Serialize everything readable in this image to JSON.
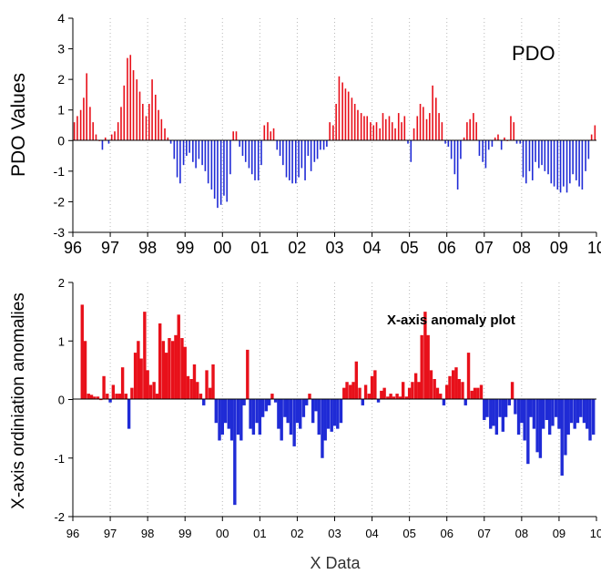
{
  "chart_data": [
    {
      "type": "bar",
      "title": "PDO",
      "xlabel": "",
      "ylabel": "PDO Values",
      "xlim": [
        1996,
        2010
      ],
      "ylim": [
        -3,
        4
      ],
      "yticks": [
        -3,
        -2,
        -1,
        0,
        1,
        2,
        3,
        4
      ],
      "xtick_labels": [
        "96",
        "97",
        "98",
        "99",
        "00",
        "01",
        "02",
        "03",
        "04",
        "05",
        "06",
        "07",
        "08",
        "09",
        "10"
      ],
      "grid": "vertical dotted",
      "colors": {
        "positive": "#e8101a",
        "negative": "#1f2bd6"
      },
      "series": [
        {
          "x": [
            1996.04,
            1996.12,
            1996.21,
            1996.29,
            1996.37,
            1996.46,
            1996.54,
            1996.62,
            1996.71,
            1996.79,
            1996.87,
            1996.96,
            1997.04,
            1997.12,
            1997.21,
            1997.29,
            1997.37,
            1997.46,
            1997.54,
            1997.62,
            1997.71,
            1997.79,
            1997.87,
            1997.96,
            1998.04,
            1998.12,
            1998.21,
            1998.29,
            1998.37,
            1998.46,
            1998.54,
            1998.62,
            1998.71,
            1998.79,
            1998.87,
            1998.96,
            1999.04,
            1999.12,
            1999.21,
            1999.29,
            1999.37,
            1999.46,
            1999.54,
            1999.62,
            1999.71,
            1999.79,
            1999.87,
            1999.96,
            2000.04,
            2000.12,
            2000.21,
            2000.29,
            2000.37,
            2000.46,
            2000.54,
            2000.62,
            2000.71,
            2000.79,
            2000.87,
            2000.96,
            2001.04,
            2001.12,
            2001.21,
            2001.29,
            2001.37,
            2001.46,
            2001.54,
            2001.62,
            2001.71,
            2001.79,
            2001.87,
            2001.96,
            2002.04,
            2002.12,
            2002.21,
            2002.29,
            2002.37,
            2002.46,
            2002.54,
            2002.62,
            2002.71,
            2002.79,
            2002.87,
            2002.96,
            2003.04,
            2003.12,
            2003.21,
            2003.29,
            2003.37,
            2003.46,
            2003.54,
            2003.62,
            2003.71,
            2003.79,
            2003.87,
            2003.96,
            2004.04,
            2004.12,
            2004.21,
            2004.29,
            2004.37,
            2004.46,
            2004.54,
            2004.62,
            2004.71,
            2004.79,
            2004.87,
            2004.96,
            2005.04,
            2005.12,
            2005.21,
            2005.29,
            2005.37,
            2005.46,
            2005.54,
            2005.62,
            2005.71,
            2005.79,
            2005.87,
            2005.96,
            2006.04,
            2006.12,
            2006.21,
            2006.29,
            2006.37,
            2006.46,
            2006.54,
            2006.62,
            2006.71,
            2006.79,
            2006.87,
            2006.96,
            2007.04,
            2007.12,
            2007.21,
            2007.29,
            2007.37,
            2007.46,
            2007.54,
            2007.62,
            2007.71,
            2007.79,
            2007.87,
            2007.96,
            2008.04,
            2008.12,
            2008.21,
            2008.29,
            2008.37,
            2008.46,
            2008.54,
            2008.62,
            2008.71,
            2008.79,
            2008.87,
            2008.96,
            2009.04,
            2009.12,
            2009.21,
            2009.29,
            2009.37,
            2009.46,
            2009.54,
            2009.62,
            2009.71,
            2009.79,
            2009.87,
            2009.96
          ],
          "values": [
            0.6,
            0.8,
            1.0,
            1.4,
            2.2,
            1.1,
            0.6,
            0.2,
            0.0,
            -0.3,
            0.1,
            -0.1,
            0.2,
            0.3,
            0.6,
            1.1,
            1.8,
            2.7,
            2.8,
            2.3,
            2.0,
            1.6,
            1.2,
            0.8,
            1.2,
            2.0,
            1.5,
            1.0,
            0.7,
            0.4,
            0.1,
            -0.1,
            -0.6,
            -1.2,
            -1.4,
            -0.8,
            -0.5,
            -0.4,
            -0.7,
            -0.9,
            -0.6,
            -0.8,
            -1.0,
            -1.4,
            -1.6,
            -1.9,
            -2.2,
            -2.1,
            -1.8,
            -2.0,
            -1.1,
            0.3,
            0.3,
            -0.2,
            -0.5,
            -0.7,
            -0.9,
            -1.1,
            -1.3,
            -1.3,
            -0.8,
            0.5,
            0.6,
            0.3,
            0.4,
            -0.3,
            -0.5,
            -0.8,
            -1.2,
            -1.3,
            -1.4,
            -1.4,
            -1.2,
            -0.9,
            -1.3,
            -0.5,
            -1.0,
            -0.7,
            -0.6,
            -0.3,
            -0.3,
            -0.2,
            0.6,
            0.5,
            1.2,
            2.1,
            1.9,
            1.7,
            1.6,
            1.4,
            1.2,
            1.0,
            0.9,
            0.8,
            0.8,
            0.6,
            0.5,
            0.6,
            0.4,
            0.9,
            0.7,
            0.8,
            0.6,
            0.4,
            0.9,
            0.6,
            0.8,
            -0.1,
            -0.7,
            0.4,
            0.8,
            1.2,
            1.1,
            0.7,
            0.9,
            1.8,
            1.4,
            0.9,
            0.6,
            -0.1,
            -0.2,
            -0.6,
            -1.1,
            -1.6,
            -0.6,
            0.1,
            0.6,
            0.7,
            0.9,
            0.6,
            -0.5,
            -0.7,
            -0.9,
            -0.3,
            -0.2,
            0.1,
            0.2,
            -0.3,
            0.1,
            0.0,
            0.8,
            0.6,
            -0.1,
            -0.1,
            -1.2,
            -1.4,
            -1.0,
            -1.3,
            -0.7,
            -0.9,
            -0.8,
            -1.0,
            -1.1,
            -1.4,
            -1.5,
            -1.6,
            -1.7,
            -1.5,
            -1.7,
            -1.4,
            -1.1,
            -1.3,
            -1.5,
            -1.6,
            -1.0,
            -0.6,
            0.2,
            0.5
          ]
        }
      ]
    },
    {
      "type": "bar",
      "title": "X-axis anomaly plot",
      "xlabel": "X Data",
      "ylabel": "X-axis ordiniation anomalies",
      "xlim": [
        1996,
        2010
      ],
      "ylim": [
        -2,
        2
      ],
      "yticks": [
        -2,
        -1,
        0,
        1,
        2
      ],
      "xtick_labels": [
        "96",
        "97",
        "98",
        "99",
        "00",
        "01",
        "02",
        "03",
        "04",
        "05",
        "06",
        "07",
        "08",
        "09",
        "10"
      ],
      "grid": "vertical dotted",
      "colors": {
        "positive": "#e8101a",
        "negative": "#1f2bd6"
      },
      "series": [
        {
          "x": [
            1996.25,
            1996.33,
            1996.42,
            1996.5,
            1996.58,
            1996.67,
            1996.75,
            1996.83,
            1996.92,
            1997.0,
            1997.08,
            1997.17,
            1997.25,
            1997.33,
            1997.42,
            1997.5,
            1997.58,
            1997.67,
            1997.75,
            1997.83,
            1997.92,
            1998.0,
            1998.08,
            1998.17,
            1998.25,
            1998.33,
            1998.42,
            1998.5,
            1998.58,
            1998.67,
            1998.75,
            1998.83,
            1998.92,
            1999.0,
            1999.08,
            1999.17,
            1999.25,
            1999.33,
            1999.42,
            1999.5,
            1999.58,
            1999.67,
            1999.75,
            1999.83,
            1999.92,
            2000.0,
            2000.08,
            2000.17,
            2000.25,
            2000.33,
            2000.42,
            2000.5,
            2000.58,
            2000.67,
            2000.75,
            2000.83,
            2000.92,
            2001.0,
            2001.08,
            2001.17,
            2001.25,
            2001.33,
            2001.42,
            2001.5,
            2001.58,
            2001.67,
            2001.75,
            2001.83,
            2001.92,
            2002.0,
            2002.08,
            2002.17,
            2002.25,
            2002.33,
            2002.42,
            2002.5,
            2002.58,
            2002.67,
            2002.75,
            2002.83,
            2002.92,
            2003.0,
            2003.08,
            2003.17,
            2003.25,
            2003.33,
            2003.42,
            2003.5,
            2003.58,
            2003.67,
            2003.75,
            2003.83,
            2003.92,
            2004.0,
            2004.08,
            2004.17,
            2004.25,
            2004.33,
            2004.42,
            2004.5,
            2004.58,
            2004.67,
            2004.75,
            2004.83,
            2004.92,
            2005.0,
            2005.08,
            2005.17,
            2005.25,
            2005.33,
            2005.42,
            2005.5,
            2005.58,
            2005.67,
            2005.75,
            2005.83,
            2005.92,
            2006.0,
            2006.08,
            2006.17,
            2006.25,
            2006.33,
            2006.42,
            2006.5,
            2006.58,
            2006.67,
            2006.75,
            2006.83,
            2006.92,
            2007.0,
            2007.08,
            2007.17,
            2007.25,
            2007.33,
            2007.42,
            2007.5,
            2007.58,
            2007.67,
            2007.75,
            2007.83,
            2007.92,
            2008.0,
            2008.08,
            2008.17,
            2008.25,
            2008.33,
            2008.42,
            2008.5,
            2008.58,
            2008.67,
            2008.75,
            2008.83,
            2008.92,
            2009.0,
            2009.08,
            2009.17,
            2009.25,
            2009.33,
            2009.42,
            2009.5,
            2009.58,
            2009.67,
            2009.75,
            2009.83,
            2009.92
          ],
          "values": [
            1.62,
            1.0,
            0.1,
            0.08,
            0.05,
            0.05,
            0.0,
            0.4,
            0.1,
            -0.05,
            0.25,
            0.1,
            0.1,
            0.55,
            0.1,
            -0.5,
            0.2,
            0.8,
            1.0,
            0.7,
            1.5,
            0.5,
            0.25,
            0.3,
            0.1,
            1.3,
            1.0,
            0.8,
            1.05,
            1.0,
            1.1,
            1.45,
            1.05,
            0.9,
            0.4,
            0.35,
            0.6,
            0.3,
            0.1,
            -0.1,
            0.5,
            0.2,
            0.6,
            -0.4,
            -0.7,
            -0.6,
            -0.4,
            -0.5,
            -0.7,
            -1.8,
            -0.6,
            -0.7,
            -0.1,
            0.85,
            -0.5,
            -0.6,
            -0.4,
            -0.6,
            -0.3,
            -0.2,
            -0.1,
            0.1,
            -0.05,
            -0.5,
            -0.7,
            -0.3,
            -0.4,
            -0.6,
            -0.8,
            -0.4,
            -0.5,
            -0.3,
            -0.1,
            0.1,
            -0.4,
            -0.2,
            -0.6,
            -1.0,
            -0.7,
            -0.5,
            -0.55,
            -0.45,
            -0.5,
            -0.4,
            0.2,
            0.3,
            0.25,
            0.3,
            0.65,
            0.2,
            -0.1,
            0.25,
            0.1,
            0.4,
            0.5,
            -0.05,
            0.15,
            0.2,
            0.05,
            0.1,
            0.05,
            0.1,
            0.05,
            0.3,
            0.05,
            0.2,
            0.3,
            0.45,
            0.3,
            1.1,
            1.5,
            1.1,
            0.5,
            0.35,
            0.2,
            0.1,
            -0.1,
            0.25,
            0.4,
            0.5,
            0.55,
            0.35,
            0.3,
            -0.1,
            0.8,
            0.15,
            0.2,
            0.2,
            0.25,
            -0.35,
            -0.3,
            -0.5,
            -0.45,
            -0.6,
            -0.3,
            -0.55,
            -0.3,
            -0.1,
            0.3,
            -0.25,
            -0.6,
            -0.4,
            -0.7,
            -1.1,
            -0.3,
            -0.5,
            -0.9,
            -1.0,
            -0.5,
            -0.35,
            -0.6,
            -0.45,
            -0.3,
            -0.5,
            -1.3,
            -0.95,
            -0.6,
            -0.4,
            -0.5,
            -0.4,
            -0.3,
            -0.4,
            -0.5,
            -0.7,
            -0.6
          ]
        }
      ]
    }
  ]
}
